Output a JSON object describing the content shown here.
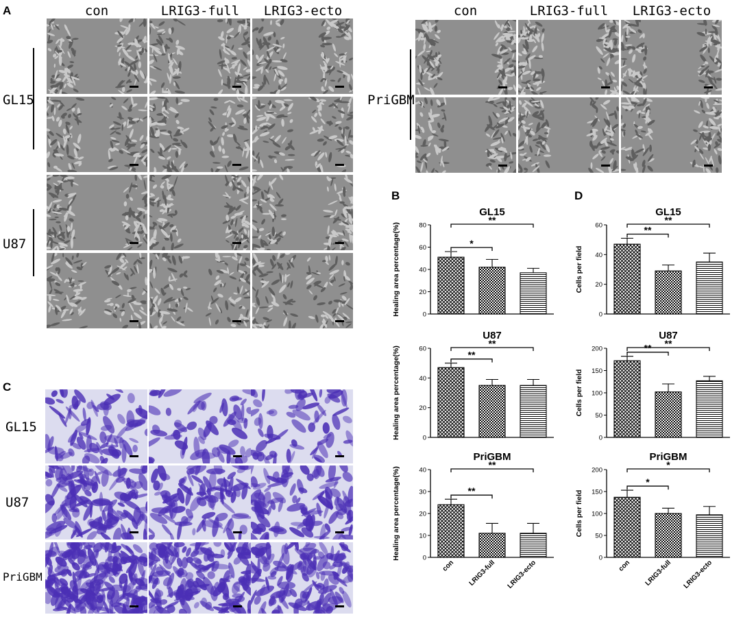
{
  "figure": {
    "panels": {
      "A": "A",
      "B": "B",
      "C": "C",
      "D": "D"
    },
    "conditions": [
      "con",
      "LRIG3-full",
      "LRIG3-ecto"
    ],
    "panelA_left_rows": [
      "GL15",
      "U87"
    ],
    "panelA_right_rows": [
      "PriGBM"
    ],
    "panelC_rows": [
      "GL15",
      "U87",
      "PriGBM"
    ]
  },
  "colors": {
    "wound_bg": "#8f8f8f",
    "cell_tone": "#b9b9b9",
    "stain_bg": "#dcdcef",
    "stain_cell": "#4b2fb5"
  },
  "chart_data": [
    {
      "id": "B-GL15",
      "type": "bar",
      "title": "GL15",
      "ylabel": "Healing area percentage(%)",
      "categories": [
        "con",
        "LRIG3-full",
        "LRIG3-ecto"
      ],
      "values": [
        51,
        42,
        37
      ],
      "errors": [
        5,
        7,
        4
      ],
      "ylim": [
        0,
        80
      ],
      "yticks": [
        0,
        20,
        40,
        60,
        80
      ],
      "show_xlabels": false,
      "significance": [
        {
          "from": 0,
          "to": 1,
          "label": "*"
        },
        {
          "from": 0,
          "to": 2,
          "label": "**"
        }
      ]
    },
    {
      "id": "B-U87",
      "type": "bar",
      "title": "U87",
      "ylabel": "Healing area percentage(%)",
      "categories": [
        "con",
        "LRIG3-full",
        "LRIG3-ecto"
      ],
      "values": [
        47,
        35,
        35
      ],
      "errors": [
        3,
        4,
        4
      ],
      "ylim": [
        0,
        60
      ],
      "yticks": [
        0,
        20,
        40,
        60
      ],
      "show_xlabels": false,
      "significance": [
        {
          "from": 0,
          "to": 1,
          "label": "**"
        },
        {
          "from": 0,
          "to": 2,
          "label": "**"
        }
      ]
    },
    {
      "id": "B-PriGBM",
      "type": "bar",
      "title": "PriGBM",
      "ylabel": "Healing area percentage(%)",
      "categories": [
        "con",
        "LRIG3-full",
        "LRIG3-ecto"
      ],
      "values": [
        24,
        11,
        11
      ],
      "errors": [
        2.5,
        4.5,
        4.5
      ],
      "ylim": [
        0,
        40
      ],
      "yticks": [
        0,
        10,
        20,
        30,
        40
      ],
      "show_xlabels": true,
      "significance": [
        {
          "from": 0,
          "to": 1,
          "label": "**"
        },
        {
          "from": 0,
          "to": 2,
          "label": "**"
        }
      ]
    },
    {
      "id": "D-GL15",
      "type": "bar",
      "title": "GL15",
      "ylabel": "Cells per field",
      "categories": [
        "con",
        "LRIG3-full",
        "LRIG3-ecto"
      ],
      "values": [
        47,
        29,
        35
      ],
      "errors": [
        4,
        4,
        6
      ],
      "ylim": [
        0,
        60
      ],
      "yticks": [
        0,
        20,
        40,
        60
      ],
      "show_xlabels": false,
      "significance": [
        {
          "from": 0,
          "to": 1,
          "label": "**"
        },
        {
          "from": 0,
          "to": 2,
          "label": "**"
        }
      ]
    },
    {
      "id": "D-U87",
      "type": "bar",
      "title": "U87",
      "ylabel": "Cells per field",
      "categories": [
        "con",
        "LRIG3-full",
        "LRIG3-ecto"
      ],
      "values": [
        172,
        102,
        127
      ],
      "errors": [
        10,
        18,
        10
      ],
      "ylim": [
        0,
        200
      ],
      "yticks": [
        0,
        50,
        100,
        150,
        200
      ],
      "show_xlabels": false,
      "significance": [
        {
          "from": 0,
          "to": 1,
          "label": "**"
        },
        {
          "from": 0,
          "to": 2,
          "label": "**"
        }
      ]
    },
    {
      "id": "D-PriGBM",
      "type": "bar",
      "title": "PriGBM",
      "ylabel": "Cells per field",
      "categories": [
        "con",
        "LRIG3-full",
        "LRIG3-ecto"
      ],
      "values": [
        137,
        100,
        97
      ],
      "errors": [
        16,
        12,
        19
      ],
      "ylim": [
        0,
        200
      ],
      "yticks": [
        0,
        50,
        100,
        150,
        200
      ],
      "show_xlabels": true,
      "significance": [
        {
          "from": 0,
          "to": 1,
          "label": "*"
        },
        {
          "from": 0,
          "to": 2,
          "label": "*"
        }
      ]
    }
  ]
}
